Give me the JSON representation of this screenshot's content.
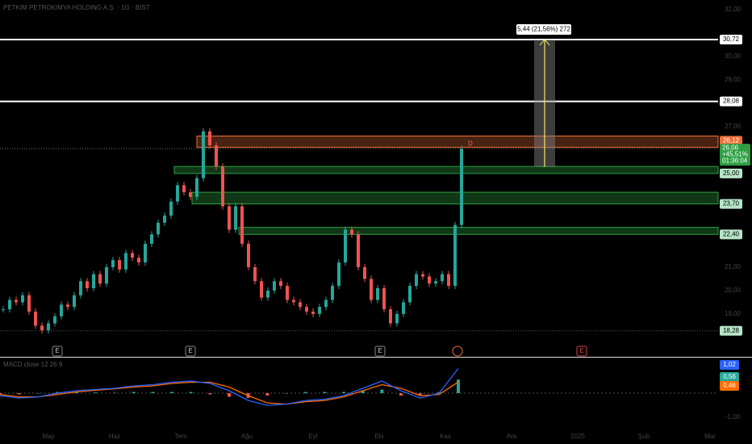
{
  "chart_data": {
    "type": "candlestick",
    "title": "PETKIM PETROKIMYA HOLDING A.Ş. · 1G · BIST",
    "ylim": [
      17.17,
      32.41
    ],
    "yticks": [
      {
        "value": 32,
        "label": "32,00"
      },
      {
        "value": 30,
        "label": "30,00"
      },
      {
        "value": 29,
        "label": "29,00"
      },
      {
        "value": 27,
        "label": "27,00"
      },
      {
        "value": 21,
        "label": "21,00"
      },
      {
        "value": 20,
        "label": "20,00"
      },
      {
        "value": 19,
        "label": "19,00"
      }
    ],
    "values": [
      19.2,
      19.6,
      19.5,
      19.8,
      19.1,
      18.5,
      18.3,
      18.6,
      18.9,
      19.4,
      19.3,
      19.8,
      20.4,
      20.1,
      20.7,
      20.3,
      21.0,
      21.3,
      20.9,
      21.6,
      21.4,
      21.2,
      22.0,
      22.4,
      22.9,
      23.2,
      23.8,
      24.5,
      24.2,
      24.0,
      24.8,
      26.8,
      26.2,
      25.3,
      23.6,
      22.6,
      23.6,
      22.0,
      21.0,
      20.4,
      19.7,
      20.0,
      20.4,
      20.2,
      19.6,
      19.5,
      19.3,
      19.1,
      19.0,
      19.3,
      19.6,
      20.2,
      21.2,
      22.6,
      22.4,
      21.0,
      20.5,
      19.6,
      20.1,
      19.2,
      18.6,
      19.0,
      19.5,
      20.2,
      20.7,
      20.6,
      20.3,
      20.4,
      20.7,
      20.2,
      22.8,
      26.06
    ],
    "up_color": "#26a69a",
    "down_color": "#ef5350",
    "lines": [
      {
        "value": 30.72,
        "label": "30,72"
      },
      {
        "value": 28.08,
        "label": "28,08"
      }
    ],
    "zones": [
      {
        "low": 26.12,
        "high": 26.6,
        "label": "26,12",
        "color": "#f0703a"
      },
      {
        "low": 25.0,
        "high": 25.3,
        "label": "25,00",
        "color": "#2ea043"
      },
      {
        "low": 23.7,
        "high": 24.2,
        "label": "23,70",
        "color": "#2ea043"
      },
      {
        "low": 22.4,
        "high": 22.7,
        "label": "22,40",
        "color": "#2ea043"
      }
    ],
    "low_line": {
      "value": 18.28,
      "label": "18,28"
    },
    "last_price": {
      "value": 26.06,
      "label": "26,06",
      "change": "+45,51%",
      "countdown": "01:36:04"
    },
    "marker": "D",
    "measure": {
      "from": 25.28,
      "to": 30.72,
      "label": "5,44 (21,56%) 272"
    },
    "events": [
      "E",
      "E",
      "E",
      "E"
    ],
    "x_labels": [
      "May",
      "Haz",
      "Tem",
      "Ağu",
      "Eyl",
      "Eki",
      "Kas",
      "Ara",
      "2025",
      "Şub",
      "Mar"
    ],
    "macd": {
      "title": "MACD close 12 26 9",
      "ylim": [
        -1.43,
        1.4
      ],
      "yticks": [
        {
          "value": -1,
          "label": "-1,00"
        }
      ],
      "macd_color": "#2962ff",
      "signal_color": "#ff6d00",
      "values": [
        -0.1,
        -0.2,
        -0.15,
        0.0,
        0.1,
        0.15,
        0.2,
        0.3,
        0.35,
        0.45,
        0.5,
        0.4,
        0.1,
        -0.3,
        -0.5,
        -0.45,
        -0.3,
        -0.25,
        -0.1,
        0.2,
        0.5,
        0.1,
        -0.2,
        0.0,
        1.02
      ],
      "signal": [
        -0.05,
        -0.15,
        -0.15,
        -0.05,
        0.05,
        0.12,
        0.18,
        0.25,
        0.3,
        0.4,
        0.45,
        0.45,
        0.25,
        -0.1,
        -0.4,
        -0.45,
        -0.35,
        -0.3,
        -0.15,
        0.1,
        0.35,
        0.2,
        -0.1,
        -0.05,
        0.46
      ],
      "histogram": [
        -0.05,
        -0.05,
        0.0,
        0.05,
        0.05,
        0.03,
        0.02,
        0.05,
        0.05,
        0.05,
        0.05,
        -0.05,
        -0.15,
        -0.2,
        -0.1,
        0.0,
        0.05,
        0.05,
        0.05,
        0.1,
        0.15,
        -0.1,
        -0.1,
        0.05,
        0.56
      ],
      "labels": [
        {
          "value": 1.02,
          "label": "1,02",
          "color": "#2962ff"
        },
        {
          "value": 0.56,
          "label": "0,56",
          "color": "#26a69a"
        },
        {
          "value": 0.46,
          "label": "0,46",
          "color": "#ff6d00"
        }
      ]
    }
  }
}
